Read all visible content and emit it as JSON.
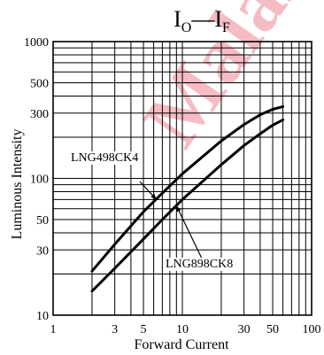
{
  "chart_data": {
    "type": "line",
    "title": {
      "main": "I",
      "sub1": "O",
      "dash": "—",
      "main2": "I",
      "sub2": "F"
    },
    "xlabel": "Forward Current",
    "ylabel": "Luminous Intensity",
    "x_scale": "log",
    "y_scale": "log",
    "xlim": [
      1,
      100
    ],
    "ylim": [
      10,
      1000
    ],
    "x_ticks": [
      {
        "value": 1,
        "label": "1"
      },
      {
        "value": 3,
        "label": "3"
      },
      {
        "value": 5,
        "label": "5"
      },
      {
        "value": 10,
        "label": "10"
      },
      {
        "value": 30,
        "label": "30"
      },
      {
        "value": 50,
        "label": "50"
      },
      {
        "value": 100,
        "label": "100"
      }
    ],
    "y_ticks": [
      {
        "value": 10,
        "label": "10"
      },
      {
        "value": 30,
        "label": "30"
      },
      {
        "value": 50,
        "label": "50"
      },
      {
        "value": 100,
        "label": "100"
      },
      {
        "value": 300,
        "label": "300"
      },
      {
        "value": 500,
        "label": "500"
      },
      {
        "value": 1000,
        "label": "1000"
      }
    ],
    "grid": true,
    "series": [
      {
        "name": "LNG498CK4",
        "x": [
          2,
          3,
          5,
          7,
          10,
          20,
          30,
          40,
          50,
          60
        ],
        "y": [
          21,
          33,
          57,
          78,
          108,
          188,
          248,
          292,
          320,
          335
        ]
      },
      {
        "name": "LNG898CK8",
        "x": [
          2,
          3,
          5,
          7,
          10,
          20,
          30,
          40,
          50,
          60
        ],
        "y": [
          15,
          22,
          36,
          50,
          70,
          126,
          174,
          212,
          245,
          268
        ]
      }
    ],
    "annotations": [
      {
        "text": "LNG498CK4",
        "series": 0
      },
      {
        "text": "LNG898CK8",
        "series": 1
      }
    ]
  },
  "watermark": {
    "text": "MalaiDisplay",
    "color": "#f4a6b0"
  }
}
